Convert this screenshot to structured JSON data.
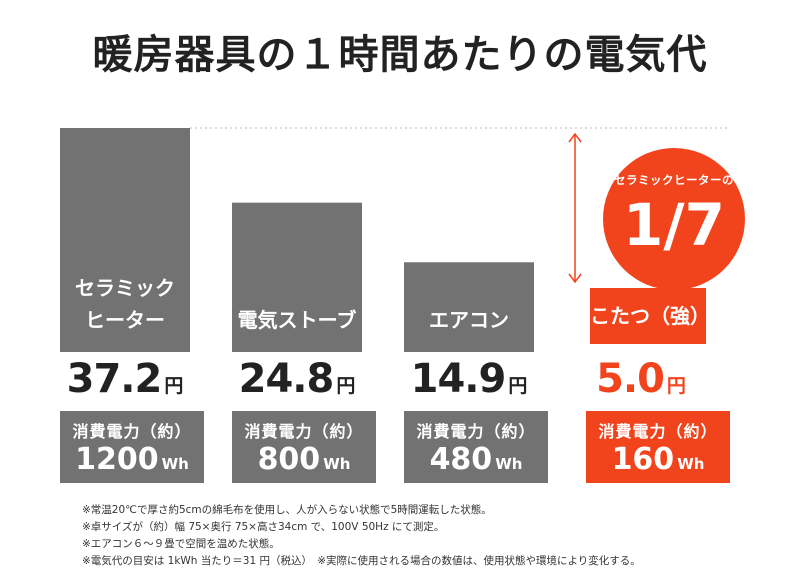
{
  "title": "暖房器具の１時間あたりの電気代",
  "colors": {
    "gray": "#727272",
    "accent": "#f2441c",
    "text_dark": "#222222",
    "guide": "#bbbbbb",
    "arrow": "#f2441c"
  },
  "chart_data": {
    "type": "bar",
    "title": "暖房器具の１時間あたりの電気代",
    "categories": [
      {
        "label_lines": [
          "セラミック",
          "ヒーター"
        ],
        "cost": 37.2,
        "cost_text": "37.2",
        "unit": "円",
        "power_label": "消費電力（約）",
        "power_value": "1200",
        "power_unit": "Wh",
        "highlight": false
      },
      {
        "label_lines": [
          "電気ストーブ"
        ],
        "cost": 24.8,
        "cost_text": "24.8",
        "unit": "円",
        "power_label": "消費電力（約）",
        "power_value": "800",
        "power_unit": "Wh",
        "highlight": false
      },
      {
        "label_lines": [
          "エアコン"
        ],
        "cost": 14.9,
        "cost_text": "14.9",
        "unit": "円",
        "power_label": "消費電力（約）",
        "power_value": "480",
        "power_unit": "Wh",
        "highlight": false
      },
      {
        "label_lines": [
          "こたつ（強）"
        ],
        "cost": 5.0,
        "cost_text": "5.0",
        "unit": "円",
        "power_label": "消費電力（約）",
        "power_value": "160",
        "power_unit": "Wh",
        "highlight": true
      }
    ],
    "ylim": [
      0,
      37.2
    ],
    "grid": false,
    "annotation": {
      "text": "セラミックヒーターの",
      "fraction": "1/7"
    }
  },
  "notes": [
    "※常温20℃で厚さ約5cmの綿毛布を使用し、人が入らない状態で5時間運転した状態。",
    "※卓サイズが（約）幅 75×奥行 75×高さ34cm で、100V 50Hz にて測定。",
    "※エアコン６～９畳で空間を温めた状態。",
    "※電気代の目安は 1kWh 当たり＝31 円（税込）　※実際に使用される場合の数値は、使用状態や環境により変化する。"
  ]
}
